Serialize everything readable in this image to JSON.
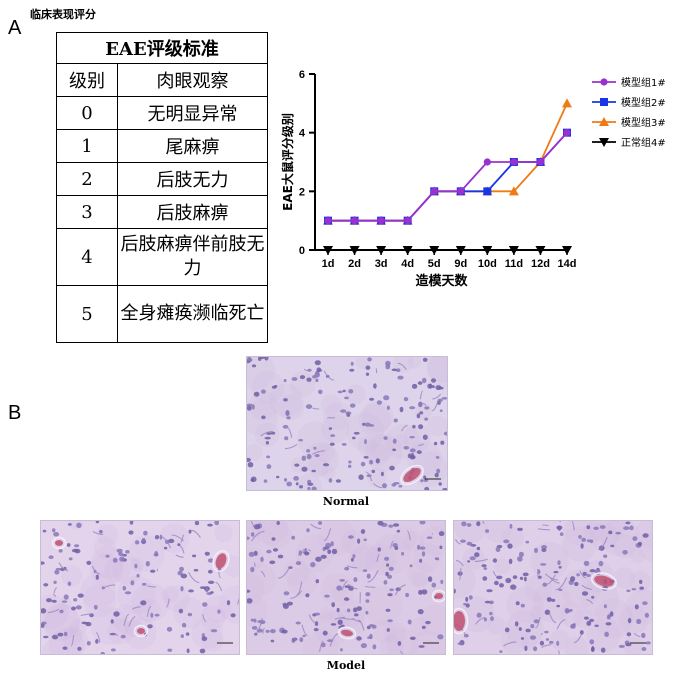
{
  "panel_a": {
    "letter": "A",
    "heading": "临床表现评分"
  },
  "panel_b": {
    "letter": "B"
  },
  "table": {
    "title": "EAE评级标准",
    "col_level": "级别",
    "col_obs": "肉眼观察",
    "rows": [
      {
        "level": "0",
        "obs": "无明显异常"
      },
      {
        "level": "1",
        "obs": "尾麻痹"
      },
      {
        "level": "2",
        "obs": "后肢无力"
      },
      {
        "level": "3",
        "obs": "后肢麻痹"
      },
      {
        "level": "4",
        "obs": "后肢麻痹伴前肢无力"
      },
      {
        "level": "5",
        "obs": "全身瘫痪濒临死亡"
      }
    ]
  },
  "chart_data": {
    "type": "line",
    "xlabel": "造模天数",
    "ylabel": "EAE大鼠评分级别",
    "categories": [
      "1d",
      "2d",
      "3d",
      "4d",
      "5d",
      "9d",
      "10d",
      "11d",
      "12d",
      "14d"
    ],
    "ylim": [
      0,
      6
    ],
    "yticks": [
      0,
      2,
      4,
      6
    ],
    "legend_position": "right",
    "series": [
      {
        "name": "模型组1#",
        "color": "#9b30d0",
        "marker": "circle",
        "values": [
          1,
          1,
          1,
          1,
          2,
          2,
          3,
          3,
          3,
          4
        ]
      },
      {
        "name": "模型组2#",
        "color": "#1a35e8",
        "marker": "square",
        "values": [
          1,
          1,
          1,
          1,
          2,
          2,
          2,
          3,
          3,
          4
        ]
      },
      {
        "name": "模型组3#",
        "color": "#f07a14",
        "marker": "triangle-up",
        "values": [
          1,
          1,
          1,
          1,
          2,
          2,
          2,
          2,
          3,
          5
        ]
      },
      {
        "name": "正常组4#",
        "color": "#000000",
        "marker": "triangle-down",
        "values": [
          0,
          0,
          0,
          0,
          0,
          0,
          0,
          0,
          0,
          0
        ]
      }
    ]
  },
  "micrographs": {
    "normal_caption": "Normal",
    "model_caption": "Model"
  }
}
